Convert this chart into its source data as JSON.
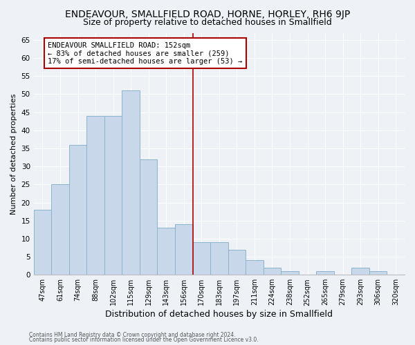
{
  "title": "ENDEAVOUR, SMALLFIELD ROAD, HORNE, HORLEY, RH6 9JP",
  "subtitle": "Size of property relative to detached houses in Smallfield",
  "xlabel": "Distribution of detached houses by size in Smallfield",
  "ylabel": "Number of detached properties",
  "bar_labels": [
    "47sqm",
    "61sqm",
    "74sqm",
    "88sqm",
    "102sqm",
    "115sqm",
    "129sqm",
    "143sqm",
    "156sqm",
    "170sqm",
    "183sqm",
    "197sqm",
    "211sqm",
    "224sqm",
    "238sqm",
    "252sqm",
    "265sqm",
    "279sqm",
    "293sqm",
    "306sqm",
    "320sqm"
  ],
  "bar_values": [
    18,
    25,
    36,
    44,
    44,
    51,
    32,
    13,
    14,
    9,
    9,
    7,
    4,
    2,
    1,
    0,
    1,
    0,
    2,
    1,
    0
  ],
  "bar_color": "#c8d8ea",
  "bar_edge_color": "#8ab4cc",
  "ylim": [
    0,
    67
  ],
  "yticks": [
    0,
    5,
    10,
    15,
    20,
    25,
    30,
    35,
    40,
    45,
    50,
    55,
    60,
    65
  ],
  "vline_x": 8.5,
  "vline_color": "#aa0000",
  "annotation_text_line1": "ENDEAVOUR SMALLFIELD ROAD: 152sqm",
  "annotation_text_line2": "← 83% of detached houses are smaller (259)",
  "annotation_text_line3": "17% of semi-detached houses are larger (53) →",
  "footer_line1": "Contains HM Land Registry data © Crown copyright and database right 2024.",
  "footer_line2": "Contains public sector information licensed under the Open Government Licence v3.0.",
  "background_color": "#eef2f6",
  "plot_bg_color": "#eef2f6",
  "grid_color": "#ffffff",
  "title_fontsize": 10,
  "subtitle_fontsize": 9,
  "ylabel_fontsize": 8,
  "xlabel_fontsize": 9
}
